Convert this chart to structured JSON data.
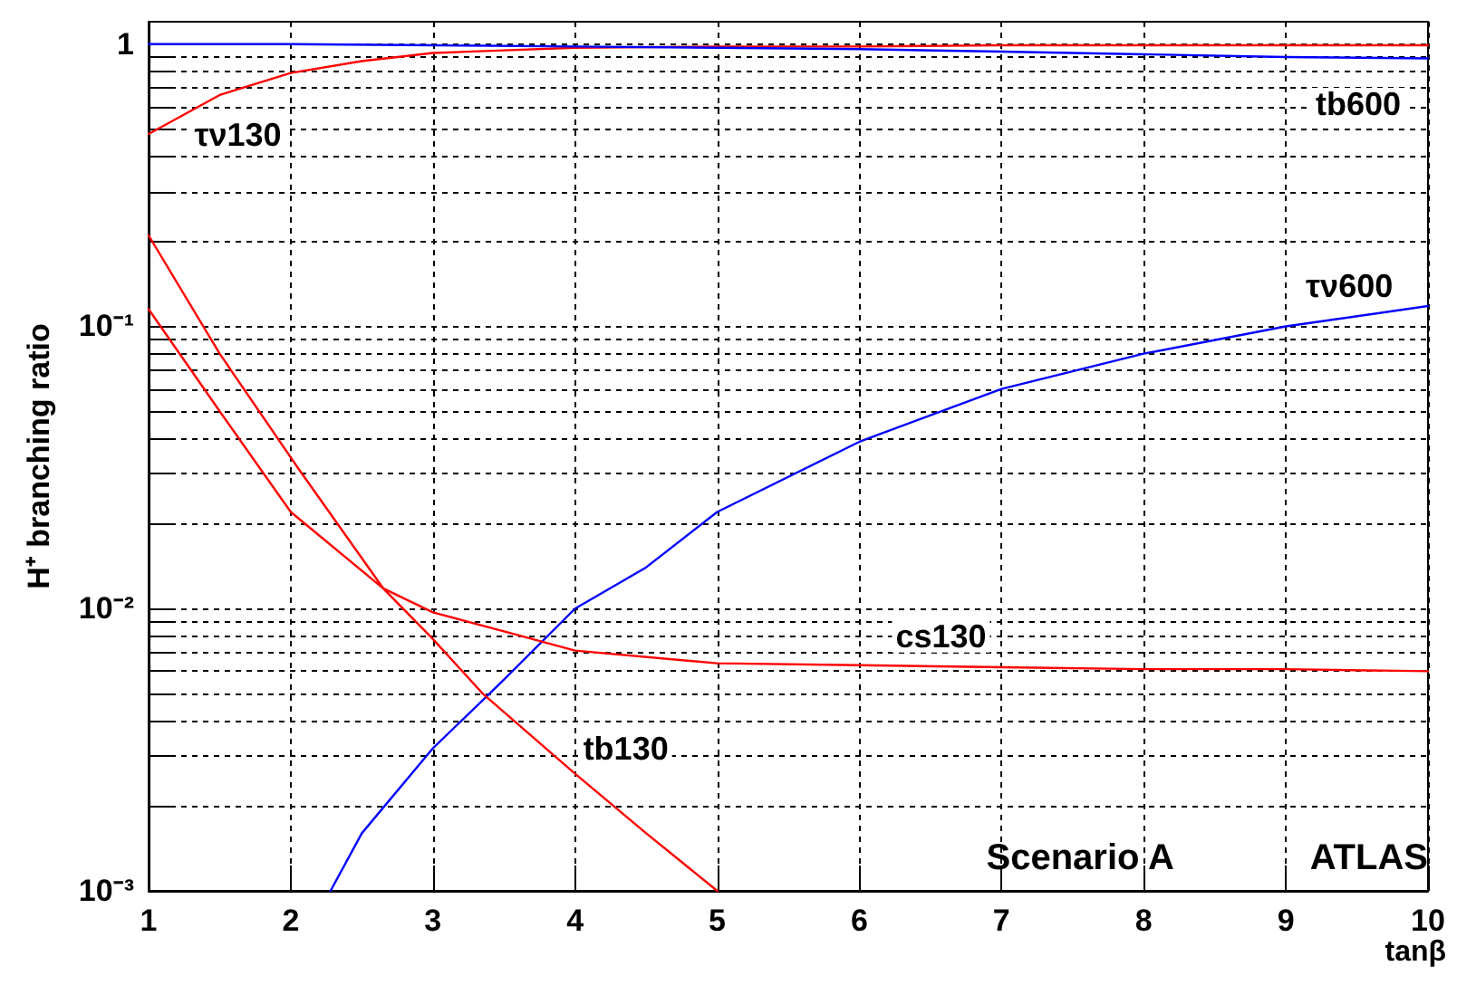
{
  "chart_data": {
    "type": "line",
    "xlabel": "tanβ",
    "ylabel": "H⁺ branching ratio",
    "log": "y",
    "grid": true,
    "marker": "none",
    "line_style": "solid",
    "xlim": [
      1,
      10
    ],
    "xticks": [
      1,
      2,
      3,
      4,
      5,
      6,
      7,
      8,
      9,
      10
    ],
    "ylim": [
      0.001,
      1.2
    ],
    "yticks": [
      {
        "value": 0.001,
        "label": "10⁻³"
      },
      {
        "value": 0.002,
        "label": null
      },
      {
        "value": 0.003,
        "label": null
      },
      {
        "value": 0.004,
        "label": null
      },
      {
        "value": 0.005,
        "label": null
      },
      {
        "value": 0.006,
        "label": null
      },
      {
        "value": 0.007,
        "label": null
      },
      {
        "value": 0.008,
        "label": null
      },
      {
        "value": 0.009,
        "label": null
      },
      {
        "value": 0.01,
        "label": "10⁻²"
      },
      {
        "value": 0.02,
        "label": null
      },
      {
        "value": 0.03,
        "label": null
      },
      {
        "value": 0.04,
        "label": null
      },
      {
        "value": 0.05,
        "label": null
      },
      {
        "value": 0.06,
        "label": null
      },
      {
        "value": 0.07,
        "label": null
      },
      {
        "value": 0.08,
        "label": null
      },
      {
        "value": 0.09,
        "label": null
      },
      {
        "value": 0.1,
        "label": "10⁻¹"
      },
      {
        "value": 0.2,
        "label": null
      },
      {
        "value": 0.3,
        "label": null
      },
      {
        "value": 0.4,
        "label": null
      },
      {
        "value": 0.5,
        "label": null
      },
      {
        "value": 0.6,
        "label": null
      },
      {
        "value": 0.7,
        "label": null
      },
      {
        "value": 0.8,
        "label": null
      },
      {
        "value": 0.9,
        "label": null
      },
      {
        "value": 1,
        "label": "1"
      }
    ],
    "series": [
      {
        "name": "τν130",
        "color": "#ff0000",
        "x": [
          1,
          1.5,
          2,
          2.5,
          3,
          3.5,
          4,
          5,
          6,
          7,
          8,
          9,
          10
        ],
        "values": [
          0.48,
          0.66,
          0.79,
          0.87,
          0.93,
          0.95,
          0.97,
          0.98,
          0.98,
          0.99,
          0.99,
          0.99,
          0.99
        ]
      },
      {
        "name": "tb600",
        "color": "#0000ff",
        "x": [
          1,
          2,
          3,
          4,
          5,
          6,
          7,
          8,
          9,
          10
        ],
        "values": [
          1,
          1,
          0.99,
          0.98,
          0.97,
          0.96,
          0.94,
          0.92,
          0.9,
          0.89
        ]
      },
      {
        "name": "τν600",
        "color": "#0000ff",
        "x": [
          2.28,
          2.5,
          3,
          3.5,
          4,
          4.5,
          5,
          6,
          7,
          8,
          9,
          10
        ],
        "values": [
          0.001,
          0.0016,
          0.0032,
          0.0056,
          0.01,
          0.014,
          0.022,
          0.039,
          0.06,
          0.08,
          0.1,
          0.118
        ]
      },
      {
        "name": "cs130",
        "color": "#ff0000",
        "x": [
          1,
          1.5,
          2,
          2.65,
          3,
          3.5,
          4,
          5,
          6,
          7,
          8,
          9,
          10
        ],
        "values": [
          0.115,
          0.05,
          0.022,
          0.0118,
          0.0097,
          0.0083,
          0.0071,
          0.0064,
          0.0063,
          0.0062,
          0.0061,
          0.0061,
          0.006
        ]
      },
      {
        "name": "tb130",
        "color": "#ff0000",
        "x": [
          1,
          1.5,
          2.06,
          2.65,
          3,
          3.35,
          4,
          4.5,
          5
        ],
        "values": [
          0.21,
          0.08,
          0.031,
          0.0118,
          0.0078,
          0.005,
          0.0026,
          0.0016,
          0.001
        ]
      }
    ],
    "annotations": [
      "Scenario A",
      "ATLAS"
    ]
  }
}
